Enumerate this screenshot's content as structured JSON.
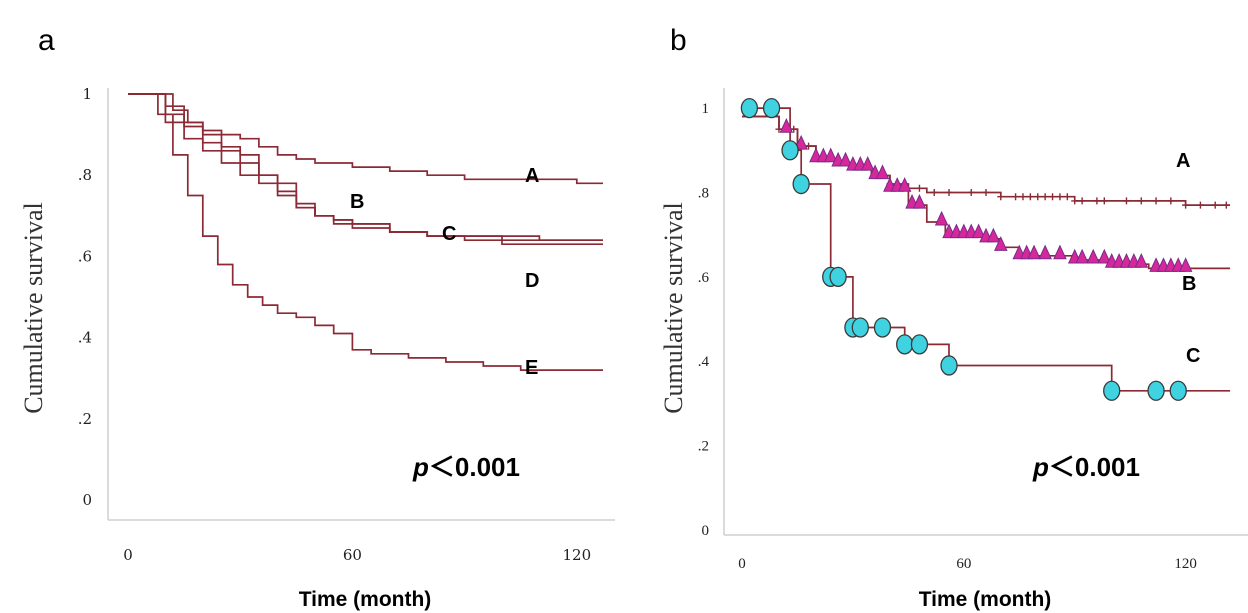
{
  "chart_data": [
    {
      "panel": "a",
      "type": "line",
      "step": true,
      "ylabel": "Cumulative survival",
      "xlabel": "Time (month)",
      "xticks": [
        "0",
        "60",
        "120"
      ],
      "yticks": [
        "0",
        ".2",
        ".4",
        ".6",
        ".8",
        "1"
      ],
      "xlim": [
        0,
        127
      ],
      "ylim": [
        0,
        1
      ],
      "grid": false,
      "line_color": "#8b2a35",
      "annotation": {
        "p": "p",
        "rest": "＜0.001"
      },
      "series": [
        {
          "name": "A",
          "points": [
            [
              0,
              1.0
            ],
            [
              5,
              1.0
            ],
            [
              10,
              0.97
            ],
            [
              15,
              0.93
            ],
            [
              20,
              0.91
            ],
            [
              25,
              0.9
            ],
            [
              30,
              0.89
            ],
            [
              35,
              0.87
            ],
            [
              40,
              0.85
            ],
            [
              45,
              0.84
            ],
            [
              50,
              0.83
            ],
            [
              55,
              0.83
            ],
            [
              60,
              0.82
            ],
            [
              70,
              0.81
            ],
            [
              80,
              0.8
            ],
            [
              90,
              0.79
            ],
            [
              100,
              0.79
            ],
            [
              110,
              0.79
            ],
            [
              120,
              0.78
            ],
            [
              127,
              0.78
            ]
          ]
        },
        {
          "name": "B",
          "points": [
            [
              0,
              1.0
            ],
            [
              8,
              1.0
            ],
            [
              12,
              0.96
            ],
            [
              16,
              0.93
            ],
            [
              20,
              0.9
            ],
            [
              25,
              0.87
            ],
            [
              30,
              0.85
            ],
            [
              35,
              0.8
            ],
            [
              40,
              0.76
            ],
            [
              45,
              0.72
            ],
            [
              50,
              0.7
            ],
            [
              55,
              0.68
            ],
            [
              60,
              0.67
            ],
            [
              70,
              0.66
            ],
            [
              80,
              0.65
            ],
            [
              90,
              0.65
            ],
            [
              100,
              0.65
            ],
            [
              110,
              0.64
            ],
            [
              120,
              0.64
            ],
            [
              127,
              0.64
            ]
          ]
        },
        {
          "name": "C",
          "points": [
            [
              0,
              1.0
            ],
            [
              6,
              1.0
            ],
            [
              10,
              0.95
            ],
            [
              15,
              0.92
            ],
            [
              20,
              0.88
            ],
            [
              25,
              0.86
            ],
            [
              30,
              0.83
            ],
            [
              35,
              0.8
            ],
            [
              40,
              0.78
            ],
            [
              45,
              0.73
            ],
            [
              50,
              0.7
            ],
            [
              55,
              0.69
            ],
            [
              60,
              0.68
            ],
            [
              70,
              0.66
            ],
            [
              80,
              0.65
            ],
            [
              90,
              0.65
            ],
            [
              100,
              0.64
            ],
            [
              110,
              0.64
            ],
            [
              120,
              0.64
            ],
            [
              127,
              0.64
            ]
          ]
        },
        {
          "name": "D",
          "points": [
            [
              0,
              1.0
            ],
            [
              5,
              1.0
            ],
            [
              10,
              0.93
            ],
            [
              15,
              0.89
            ],
            [
              20,
              0.86
            ],
            [
              25,
              0.83
            ],
            [
              30,
              0.8
            ],
            [
              35,
              0.78
            ],
            [
              40,
              0.75
            ],
            [
              45,
              0.72
            ],
            [
              50,
              0.7
            ],
            [
              55,
              0.69
            ],
            [
              60,
              0.68
            ],
            [
              70,
              0.66
            ],
            [
              80,
              0.65
            ],
            [
              90,
              0.64
            ],
            [
              100,
              0.63
            ],
            [
              110,
              0.63
            ],
            [
              120,
              0.63
            ],
            [
              127,
              0.63
            ]
          ]
        },
        {
          "name": "E",
          "points": [
            [
              0,
              1.0
            ],
            [
              5,
              1.0
            ],
            [
              8,
              0.95
            ],
            [
              12,
              0.85
            ],
            [
              16,
              0.75
            ],
            [
              20,
              0.65
            ],
            [
              24,
              0.58
            ],
            [
              28,
              0.53
            ],
            [
              32,
              0.5
            ],
            [
              36,
              0.48
            ],
            [
              40,
              0.46
            ],
            [
              45,
              0.45
            ],
            [
              50,
              0.43
            ],
            [
              55,
              0.41
            ],
            [
              60,
              0.37
            ],
            [
              65,
              0.36
            ],
            [
              75,
              0.35
            ],
            [
              85,
              0.34
            ],
            [
              95,
              0.33
            ],
            [
              105,
              0.32
            ],
            [
              115,
              0.32
            ],
            [
              127,
              0.32
            ]
          ]
        }
      ]
    },
    {
      "panel": "b",
      "type": "line",
      "step": true,
      "ylabel": "Cumulative survival",
      "xlabel": "Time (month)",
      "xticks": [
        "0",
        "60",
        "120"
      ],
      "yticks": [
        "0",
        ".2",
        ".4",
        ".6",
        ".8",
        "1"
      ],
      "xlim": [
        0,
        132
      ],
      "ylim": [
        0,
        1.05
      ],
      "grid": false,
      "line_color": "#8b2a35",
      "annotation": {
        "p": "p",
        "rest": "＜0.001"
      },
      "series": [
        {
          "name": "A",
          "marker": "plus",
          "color": "#8b2a35",
          "points": [
            [
              0,
              0.98
            ],
            [
              5,
              0.98
            ],
            [
              10,
              0.95
            ],
            [
              15,
              0.91
            ],
            [
              20,
              0.88
            ],
            [
              25,
              0.87
            ],
            [
              30,
              0.86
            ],
            [
              35,
              0.84
            ],
            [
              40,
              0.82
            ],
            [
              45,
              0.81
            ],
            [
              50,
              0.8
            ],
            [
              60,
              0.8
            ],
            [
              70,
              0.79
            ],
            [
              80,
              0.79
            ],
            [
              90,
              0.78
            ],
            [
              100,
              0.78
            ],
            [
              110,
              0.78
            ],
            [
              120,
              0.77
            ],
            [
              132,
              0.77
            ]
          ],
          "censor_x": [
            10,
            14,
            18,
            22,
            26,
            28,
            30,
            32,
            36,
            40,
            44,
            48,
            52,
            56,
            62,
            66,
            70,
            74,
            76,
            78,
            80,
            82,
            84,
            86,
            88,
            90,
            92,
            96,
            98,
            104,
            108,
            112,
            116,
            120,
            124,
            128,
            131
          ]
        },
        {
          "name": "B",
          "marker": "triangle",
          "color": "#d6289b",
          "points": [
            [
              0,
              0.98
            ],
            [
              5,
              0.98
            ],
            [
              10,
              0.95
            ],
            [
              15,
              0.91
            ],
            [
              20,
              0.88
            ],
            [
              25,
              0.87
            ],
            [
              30,
              0.86
            ],
            [
              35,
              0.84
            ],
            [
              40,
              0.81
            ],
            [
              45,
              0.77
            ],
            [
              50,
              0.73
            ],
            [
              55,
              0.7
            ],
            [
              60,
              0.7
            ],
            [
              65,
              0.69
            ],
            [
              70,
              0.67
            ],
            [
              75,
              0.65
            ],
            [
              80,
              0.65
            ],
            [
              90,
              0.64
            ],
            [
              100,
              0.63
            ],
            [
              110,
              0.62
            ],
            [
              120,
              0.62
            ],
            [
              132,
              0.62
            ]
          ],
          "censor_x": [
            12,
            16,
            20,
            22,
            24,
            26,
            28,
            30,
            32,
            34,
            36,
            38,
            40,
            42,
            44,
            46,
            48,
            54,
            56,
            58,
            60,
            62,
            64,
            66,
            68,
            70,
            75,
            77,
            79,
            82,
            86,
            90,
            92,
            95,
            98,
            100,
            102,
            104,
            106,
            108,
            112,
            114,
            116,
            118,
            120
          ]
        },
        {
          "name": "C",
          "marker": "circle",
          "color": "#3fd3e2",
          "points": [
            [
              2,
              1.0
            ],
            [
              8,
              1.0
            ],
            [
              13,
              0.9
            ],
            [
              16,
              0.82
            ],
            [
              24,
              0.6
            ],
            [
              26,
              0.6
            ],
            [
              30,
              0.48
            ],
            [
              32,
              0.48
            ],
            [
              38,
              0.48
            ],
            [
              44,
              0.44
            ],
            [
              48,
              0.44
            ],
            [
              56,
              0.39
            ],
            [
              100,
              0.33
            ],
            [
              112,
              0.33
            ],
            [
              118,
              0.33
            ],
            [
              132,
              0.33
            ]
          ],
          "censor_x": []
        }
      ]
    }
  ],
  "panels": {
    "a": {
      "letter": "a"
    },
    "b": {
      "letter": "b"
    }
  },
  "colors": {
    "curve": "#8b2a35",
    "triangle_fill": "#d6289b",
    "triangle_stroke": "#7a2a8a",
    "circle_fill": "#3fd3e2",
    "circle_stroke": "#3a3a3a",
    "axis": "#cfcfcf"
  }
}
